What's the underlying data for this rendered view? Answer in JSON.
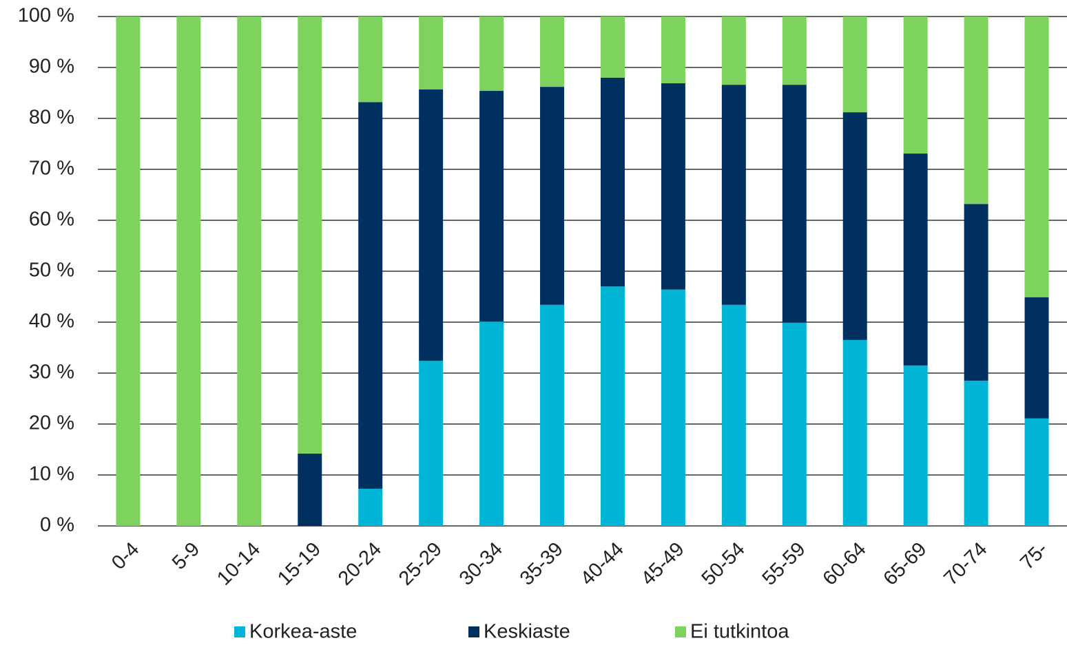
{
  "chart_data": {
    "type": "stacked_bar",
    "categories": [
      "0-4",
      "5-9",
      "10-14",
      "15-19",
      "20-24",
      "25-29",
      "30-34",
      "35-39",
      "40-44",
      "45-49",
      "50-54",
      "55-59",
      "60-64",
      "65-69",
      "70-74",
      "75-"
    ],
    "series": [
      {
        "name": "Korkea-aste",
        "color": "#00b5d6",
        "values": [
          0,
          0,
          0,
          0,
          7.3,
          32.4,
          40.1,
          43.4,
          47.0,
          46.4,
          43.4,
          39.9,
          36.5,
          31.5,
          28.5,
          21.1
        ]
      },
      {
        "name": "Keskiaste",
        "color": "#00305f",
        "values": [
          0,
          0,
          0,
          14.2,
          75.9,
          53.3,
          45.3,
          42.8,
          41.0,
          40.5,
          43.2,
          46.7,
          44.7,
          41.6,
          34.7,
          23.8
        ]
      },
      {
        "name": "Ei tutkintoa",
        "color": "#7ed35e",
        "values": [
          100,
          100,
          100,
          85.8,
          16.8,
          14.3,
          14.6,
          13.8,
          12.0,
          13.1,
          13.4,
          13.4,
          18.8,
          26.9,
          36.8,
          55.1
        ]
      }
    ],
    "ylim": [
      0,
      100
    ],
    "yticks": [
      {
        "value": 0,
        "label": "0 %"
      },
      {
        "value": 10,
        "label": "10 %"
      },
      {
        "value": 20,
        "label": "20 %"
      },
      {
        "value": 30,
        "label": "30 %"
      },
      {
        "value": 40,
        "label": "40 %"
      },
      {
        "value": 50,
        "label": "50 %"
      },
      {
        "value": 60,
        "label": "60 %"
      },
      {
        "value": 70,
        "label": "70 %"
      },
      {
        "value": 80,
        "label": "80 %"
      },
      {
        "value": 90,
        "label": "90 %"
      },
      {
        "value": 100,
        "label": "100 %"
      }
    ],
    "grid": true,
    "legend": "bottom"
  }
}
